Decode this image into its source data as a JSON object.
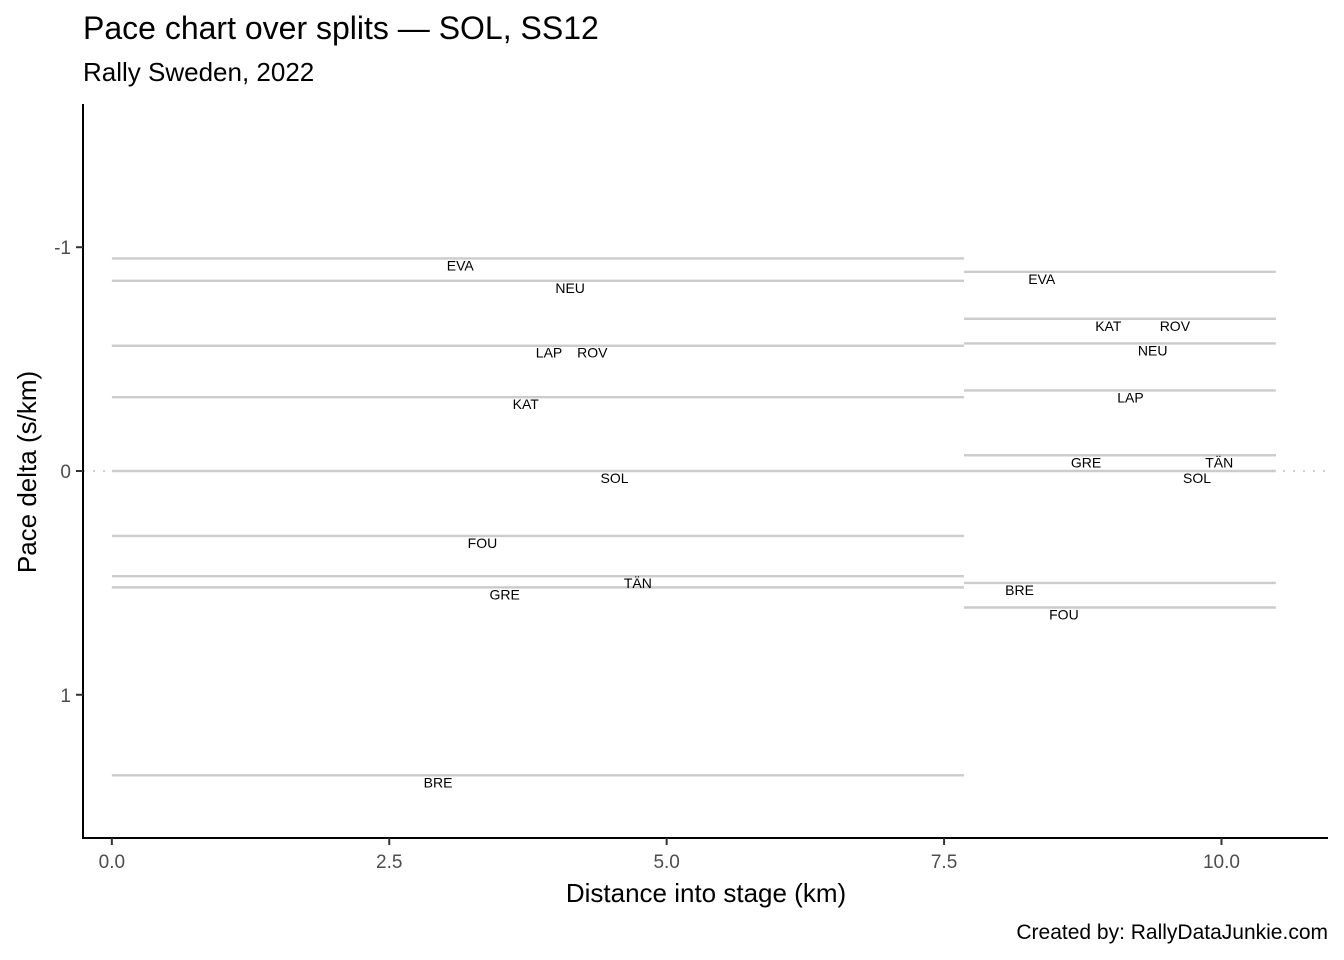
{
  "header": {
    "title": "Pace chart over splits — SOL, SS12",
    "subtitle": "Rally Sweden, 2022"
  },
  "footer": {
    "caption": "Created by: RallyDataJunkie.com"
  },
  "chart_data": {
    "type": "line",
    "title": "Pace chart over splits — SOL, SS12",
    "subtitle": "Rally Sweden, 2022",
    "xlabel": "Distance into stage (km)",
    "ylabel": "Pace delta (s/km)",
    "x_ticks": [
      "0.0",
      "2.5",
      "5.0",
      "7.5",
      "10.0"
    ],
    "y_ticks": [
      "-1",
      "0",
      "1"
    ],
    "xlim": [
      -0.26,
      10.96
    ],
    "ylim": [
      1.64,
      -1.64
    ],
    "y_reversed": true,
    "reference_line": {
      "y": 0,
      "style": "dotted"
    },
    "line_color": "#cccccc",
    "splits": [
      {
        "x_start": 0.0,
        "x_end": 7.68,
        "drivers": [
          {
            "code": "EVA",
            "pace": -0.95,
            "label_x": 3.14
          },
          {
            "code": "NEU",
            "pace": -0.85,
            "label_x": 4.13
          },
          {
            "code": "LAP",
            "pace": -0.56,
            "label_x": 3.94
          },
          {
            "code": "ROV",
            "pace": -0.56,
            "label_x": 4.33
          },
          {
            "code": "KAT",
            "pace": -0.33,
            "label_x": 3.73
          },
          {
            "code": "SOL",
            "pace": 0.0,
            "label_x": 4.53
          },
          {
            "code": "FOU",
            "pace": 0.29,
            "label_x": 3.34
          },
          {
            "code": "TÄN",
            "pace": 0.47,
            "label_x": 4.74
          },
          {
            "code": "GRE",
            "pace": 0.52,
            "label_x": 3.54
          },
          {
            "code": "BRE",
            "pace": 1.36,
            "label_x": 2.94
          }
        ]
      },
      {
        "x_start": 7.68,
        "x_end": 10.49,
        "drivers": [
          {
            "code": "EVA",
            "pace": -0.89,
            "label_x": 8.38
          },
          {
            "code": "KAT",
            "pace": -0.68,
            "label_x": 8.98
          },
          {
            "code": "ROV",
            "pace": -0.68,
            "label_x": 9.58
          },
          {
            "code": "NEU",
            "pace": -0.57,
            "label_x": 9.38
          },
          {
            "code": "LAP",
            "pace": -0.36,
            "label_x": 9.18
          },
          {
            "code": "GRE",
            "pace": -0.07,
            "label_x": 8.78
          },
          {
            "code": "TÄN",
            "pace": -0.07,
            "label_x": 9.98
          },
          {
            "code": "SOL",
            "pace": 0.0,
            "label_x": 9.78
          },
          {
            "code": "BRE",
            "pace": 0.5,
            "label_x": 8.18
          },
          {
            "code": "FOU",
            "pace": 0.61,
            "label_x": 8.58
          }
        ]
      }
    ]
  }
}
